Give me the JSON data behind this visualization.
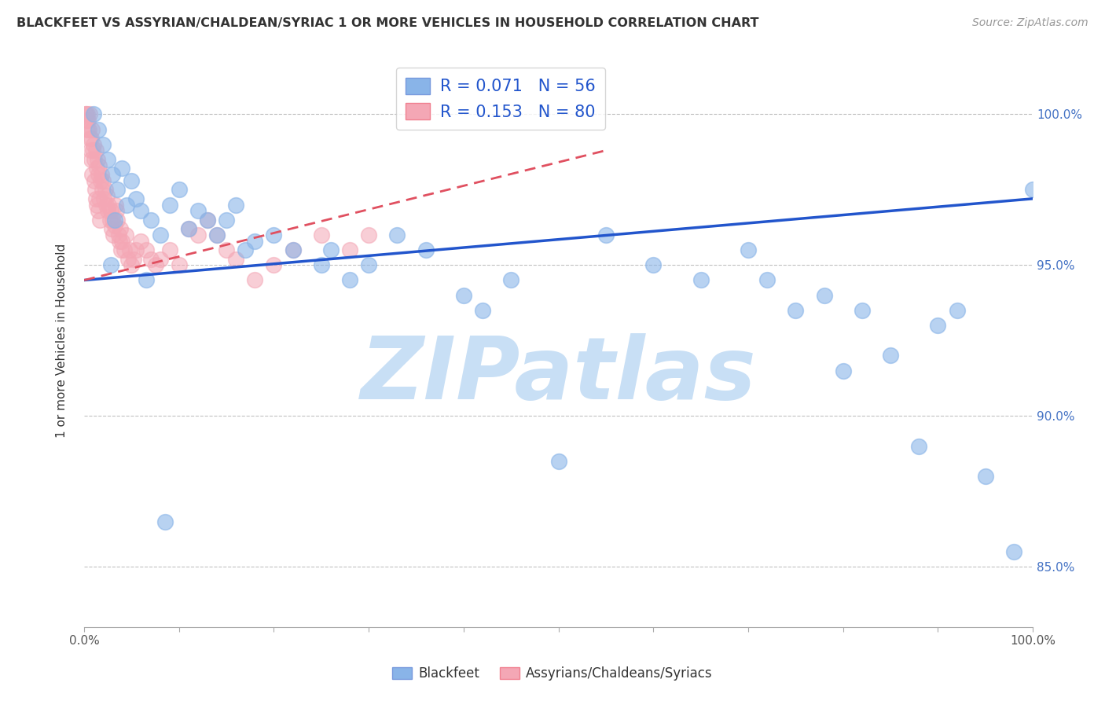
{
  "title": "BLACKFEET VS ASSYRIAN/CHALDEAN/SYRIAC 1 OR MORE VEHICLES IN HOUSEHOLD CORRELATION CHART",
  "source": "Source: ZipAtlas.com",
  "ylabel": "1 or more Vehicles in Household",
  "legend_label1": "Blackfeet",
  "legend_label2": "Assyrians/Chaldeans/Syriacs",
  "R1": 0.071,
  "N1": 56,
  "R2": 0.153,
  "N2": 80,
  "color_blue": "#89B4E8",
  "color_pink": "#F4A7B5",
  "color_blue_line": "#2255CC",
  "color_pink_line": "#E05060",
  "watermark": "ZIPatlas",
  "watermark_color": "#C8DFF5",
  "xlim": [
    0,
    100
  ],
  "ylim": [
    83.0,
    102.0
  ],
  "yticks": [
    85.0,
    90.0,
    95.0,
    100.0
  ],
  "blue_x": [
    1.0,
    1.5,
    2.0,
    2.5,
    3.0,
    3.5,
    4.0,
    4.5,
    5.0,
    5.5,
    6.0,
    7.0,
    8.0,
    9.0,
    10.0,
    11.0,
    12.0,
    13.0,
    14.0,
    15.0,
    16.0,
    17.0,
    18.0,
    20.0,
    22.0,
    25.0,
    28.0,
    30.0,
    33.0,
    36.0,
    40.0,
    45.0,
    50.0,
    55.0,
    60.0,
    65.0,
    70.0,
    72.0,
    75.0,
    78.0,
    80.0,
    82.0,
    85.0,
    88.0,
    90.0,
    92.0,
    95.0,
    98.0,
    100.0,
    2.8,
    3.2,
    6.5,
    8.5,
    26.0,
    42.0
  ],
  "blue_y": [
    100.0,
    99.5,
    99.0,
    98.5,
    98.0,
    97.5,
    98.2,
    97.0,
    97.8,
    97.2,
    96.8,
    96.5,
    96.0,
    97.0,
    97.5,
    96.2,
    96.8,
    96.5,
    96.0,
    96.5,
    97.0,
    95.5,
    95.8,
    96.0,
    95.5,
    95.0,
    94.5,
    95.0,
    96.0,
    95.5,
    94.0,
    94.5,
    88.5,
    96.0,
    95.0,
    94.5,
    95.5,
    94.5,
    93.5,
    94.0,
    91.5,
    93.5,
    92.0,
    89.0,
    93.0,
    93.5,
    88.0,
    85.5,
    97.5,
    95.0,
    96.5,
    94.5,
    86.5,
    95.5,
    93.5
  ],
  "pink_x": [
    0.2,
    0.3,
    0.4,
    0.5,
    0.6,
    0.7,
    0.8,
    0.9,
    1.0,
    1.1,
    1.2,
    1.3,
    1.4,
    1.5,
    1.6,
    1.7,
    1.8,
    1.9,
    2.0,
    2.1,
    2.2,
    2.3,
    2.4,
    2.5,
    2.6,
    2.7,
    2.8,
    2.9,
    3.0,
    3.1,
    3.2,
    3.3,
    3.4,
    3.5,
    3.6,
    3.7,
    3.8,
    3.9,
    4.0,
    4.2,
    4.4,
    4.6,
    4.8,
    5.0,
    5.2,
    5.5,
    6.0,
    6.5,
    7.0,
    7.5,
    8.0,
    9.0,
    10.0,
    11.0,
    12.0,
    13.0,
    14.0,
    15.0,
    16.0,
    18.0,
    20.0,
    22.0,
    25.0,
    28.0,
    30.0,
    0.15,
    0.25,
    0.35,
    0.55,
    0.65,
    0.75,
    0.85,
    1.05,
    1.15,
    1.25,
    1.35,
    1.45,
    1.55,
    1.65
  ],
  "pink_y": [
    100.0,
    100.0,
    99.8,
    99.5,
    100.0,
    99.2,
    99.5,
    98.8,
    99.0,
    98.5,
    98.8,
    98.2,
    98.5,
    98.0,
    98.3,
    97.8,
    98.0,
    97.5,
    97.8,
    97.2,
    97.5,
    97.0,
    97.3,
    96.8,
    97.0,
    96.5,
    96.8,
    96.2,
    96.5,
    96.0,
    96.3,
    97.0,
    96.8,
    96.5,
    96.0,
    95.8,
    96.2,
    95.5,
    95.8,
    95.5,
    96.0,
    95.2,
    95.5,
    95.0,
    95.2,
    95.5,
    95.8,
    95.5,
    95.2,
    95.0,
    95.2,
    95.5,
    95.0,
    96.2,
    96.0,
    96.5,
    96.0,
    95.5,
    95.2,
    94.5,
    95.0,
    95.5,
    96.0,
    95.5,
    96.0,
    100.0,
    99.8,
    99.5,
    99.2,
    98.8,
    98.5,
    98.0,
    97.8,
    97.5,
    97.2,
    97.0,
    96.8,
    97.2,
    96.5
  ],
  "blue_trend_x0": 0,
  "blue_trend_y0": 94.5,
  "blue_trend_x1": 100,
  "blue_trend_y1": 97.2,
  "pink_trend_x0": 0,
  "pink_trend_y0": 94.5,
  "pink_trend_x1": 55,
  "pink_trend_y1": 98.8
}
